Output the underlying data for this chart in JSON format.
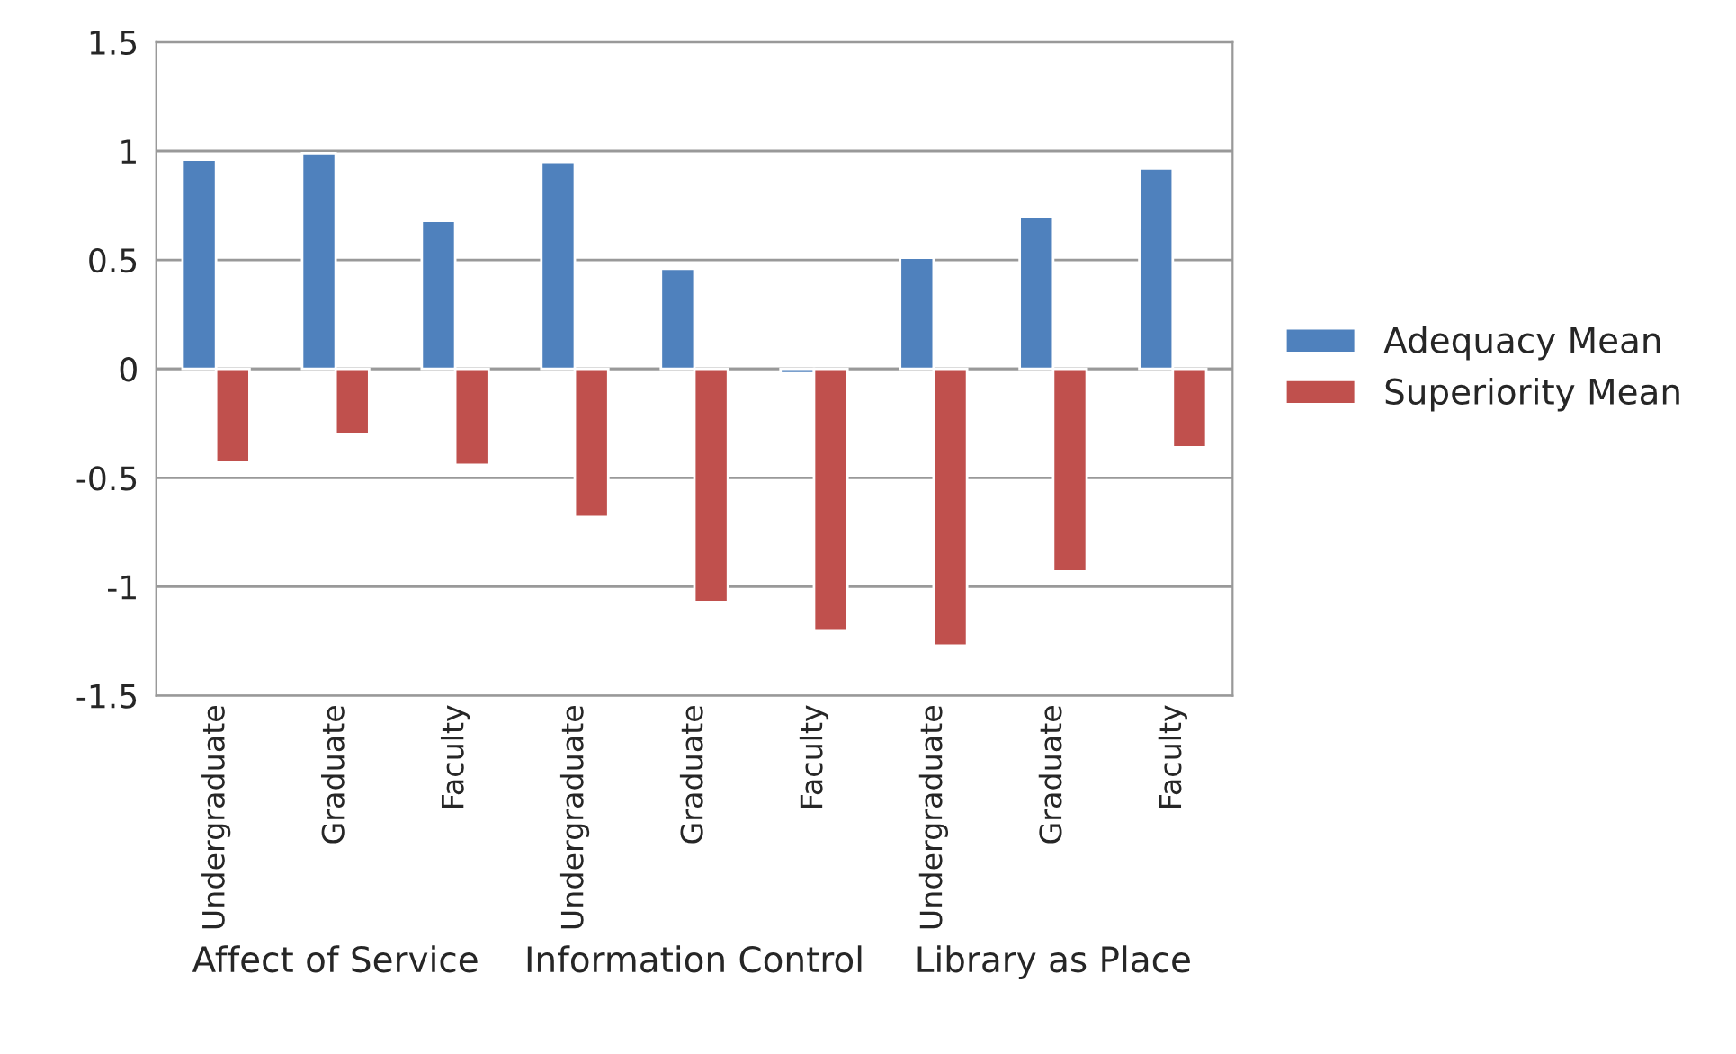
{
  "chart_data": {
    "type": "bar",
    "categories": [
      "Undergraduate",
      "Graduate",
      "Faculty",
      "Undergraduate",
      "Graduate",
      "Faculty",
      "Undergraduate",
      "Graduate",
      "Faculty"
    ],
    "series": [
      {
        "name": "Adequacy Mean",
        "color": "#4f81bd",
        "values": [
          0.96,
          0.99,
          0.68,
          0.95,
          0.46,
          -0.02,
          0.51,
          0.7,
          0.92
        ]
      },
      {
        "name": "Superiority Mean",
        "color": "#c0504d",
        "values": [
          -0.43,
          -0.3,
          -0.44,
          -0.68,
          -1.07,
          -1.2,
          -1.27,
          -0.93,
          -0.36
        ]
      }
    ],
    "annotations": [
      "Affect of Service",
      "Information Control",
      "Library as Place"
    ],
    "ylim": [
      -1.5,
      1.5
    ],
    "yticks": [
      -1.5,
      -1,
      -0.5,
      0,
      0.5,
      1,
      1.5
    ],
    "grid": "y",
    "legend": "right"
  }
}
